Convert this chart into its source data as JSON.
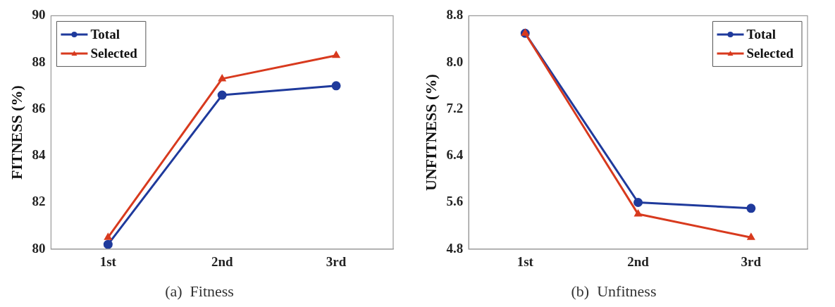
{
  "chart_data": [
    {
      "type": "line",
      "title": "(a)  Fitness",
      "ylabel": "FITNESS (%)",
      "categories": [
        "1st",
        "2nd",
        "3rd"
      ],
      "series": [
        {
          "name": "Total",
          "color": "#1f3a9c",
          "marker": "circle",
          "values": [
            80.2,
            86.6,
            87.0
          ]
        },
        {
          "name": "Selected",
          "color": "#d83a1e",
          "marker": "triangle",
          "values": [
            80.5,
            87.3,
            88.3
          ]
        }
      ],
      "ylim": [
        80,
        90
      ],
      "yticks": [
        80,
        82,
        84,
        86,
        88,
        90
      ],
      "grid": false,
      "legend": "top left"
    },
    {
      "type": "line",
      "title": "(b)  Unfitness",
      "ylabel": "UNFITNESS (%)",
      "categories": [
        "1st",
        "2nd",
        "3rd"
      ],
      "series": [
        {
          "name": "Total",
          "color": "#1f3a9c",
          "marker": "circle",
          "values": [
            8.5,
            5.6,
            5.5
          ]
        },
        {
          "name": "Selected",
          "color": "#d83a1e",
          "marker": "triangle",
          "values": [
            8.5,
            5.4,
            5.0
          ]
        }
      ],
      "ylim": [
        4.8,
        8.8
      ],
      "yticks": [
        {
          "value": 4.8,
          "label": "4.8"
        },
        {
          "value": 5.6,
          "label": "5.6"
        },
        {
          "value": 6.4,
          "label": "6.4"
        },
        {
          "value": 7.2,
          "label": "7.2"
        },
        {
          "value": 8.0,
          "label": "8.0"
        },
        {
          "value": 8.8,
          "label": "8.8"
        }
      ],
      "grid": false,
      "legend": "top right"
    }
  ]
}
